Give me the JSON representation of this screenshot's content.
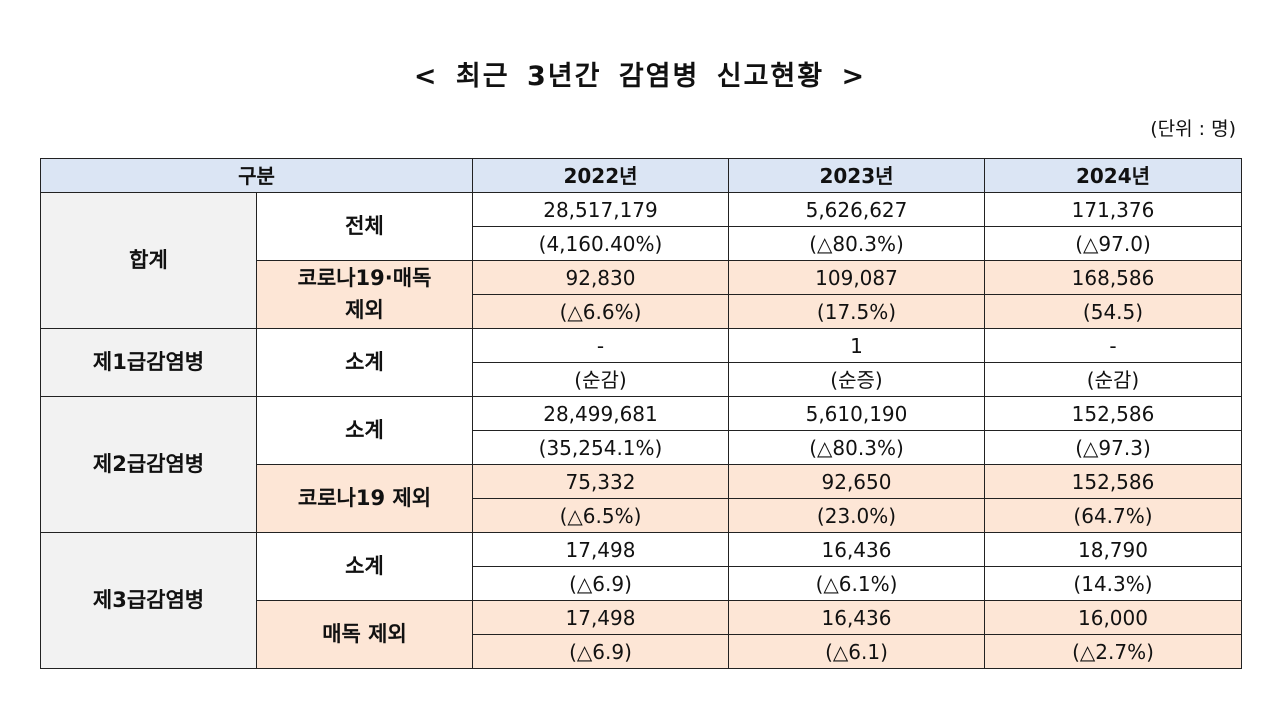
{
  "title": "< 최근 3년간 감염병 신고현황 >",
  "unit": "(단위 : 명)",
  "colors": {
    "header_bg": "#dbe5f4",
    "group_bg": "#f2f2f2",
    "highlight_bg": "#fde6d6"
  },
  "header": {
    "category": "구분",
    "years": [
      "2022년",
      "2023년",
      "2024년"
    ]
  },
  "groups": [
    {
      "label": "합계",
      "rows": [
        {
          "label": "전체",
          "highlight": false,
          "values": [
            "28,517,179",
            "5,626,627",
            "171,376"
          ],
          "changes": [
            "(4,160.40%)",
            "(△80.3%)",
            "(△97.0)"
          ]
        },
        {
          "label": "코로나19·매독\n제외",
          "highlight": true,
          "values": [
            "92,830",
            "109,087",
            "168,586"
          ],
          "changes": [
            "(△6.6%)",
            "(17.5%)",
            "(54.5)"
          ]
        }
      ]
    },
    {
      "label": "제1급감염병",
      "rows": [
        {
          "label": "소계",
          "highlight": false,
          "values": [
            "-",
            "1",
            "-"
          ],
          "changes": [
            "(순감)",
            "(순증)",
            "(순감)"
          ]
        }
      ]
    },
    {
      "label": "제2급감염병",
      "rows": [
        {
          "label": "소계",
          "highlight": false,
          "values": [
            "28,499,681",
            "5,610,190",
            "152,586"
          ],
          "changes": [
            "(35,254.1%)",
            "(△80.3%)",
            "(△97.3)"
          ]
        },
        {
          "label": "코로나19 제외",
          "highlight": true,
          "values": [
            "75,332",
            "92,650",
            "152,586"
          ],
          "changes": [
            "(△6.5%)",
            "(23.0%)",
            "(64.7%)"
          ]
        }
      ]
    },
    {
      "label": "제3급감염병",
      "rows": [
        {
          "label": "소계",
          "highlight": false,
          "values": [
            "17,498",
            "16,436",
            "18,790"
          ],
          "changes": [
            "(△6.9)",
            "(△6.1%)",
            "(14.3%)"
          ]
        },
        {
          "label": "매독 제외",
          "highlight": true,
          "values": [
            "17,498",
            "16,436",
            "16,000"
          ],
          "changes": [
            "(△6.9)",
            "(△6.1)",
            "(△2.7%)"
          ]
        }
      ]
    }
  ]
}
